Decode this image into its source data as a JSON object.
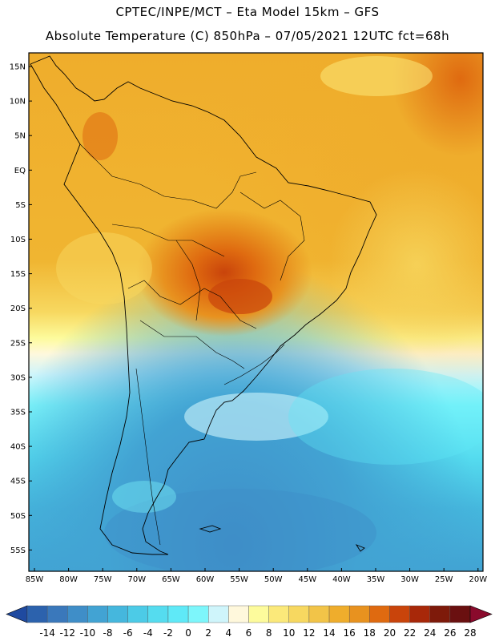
{
  "header": {
    "line1": "CPTEC/INPE/MCT –  Eta Model 15km – GFS",
    "line2": "Absolute Temperature (C) 850hPa – 07/05/2021 12UTC fct=68h"
  },
  "map": {
    "lat_labels": [
      "15N",
      "10N",
      "5N",
      "EQ",
      "5S",
      "10S",
      "15S",
      "20S",
      "25S",
      "30S",
      "35S",
      "40S",
      "45S",
      "50S",
      "55S"
    ],
    "lon_labels": [
      "85W",
      "80W",
      "75W",
      "70W",
      "65W",
      "60W",
      "55W",
      "50W",
      "45W",
      "40W",
      "35W",
      "30W",
      "25W",
      "20W"
    ],
    "lon_range": [
      -85,
      -20
    ],
    "lat_range": [
      -58,
      17
    ]
  },
  "legend": {
    "labels": [
      "-14",
      "-12",
      "-10",
      "-8",
      "-6",
      "-4",
      "-2",
      "0",
      "2",
      "4",
      "6",
      "8",
      "10",
      "12",
      "14",
      "16",
      "18",
      "20",
      "22",
      "24",
      "26",
      "28"
    ],
    "colors": [
      "#1f4aa0",
      "#2c62ad",
      "#3a78bb",
      "#3f8ec8",
      "#42a3d3",
      "#45b7dd",
      "#4ccbe7",
      "#55dcef",
      "#5fe9f7",
      "#7df6fb",
      "#cff5fb",
      "#fff8dc",
      "#fdfb9c",
      "#fbe97a",
      "#f7d860",
      "#f2c448",
      "#efad2c",
      "#e8921f",
      "#df6a10",
      "#c9440b",
      "#a82809",
      "#7e1a0a",
      "#6a1010",
      "#8a0a2c"
    ]
  }
}
